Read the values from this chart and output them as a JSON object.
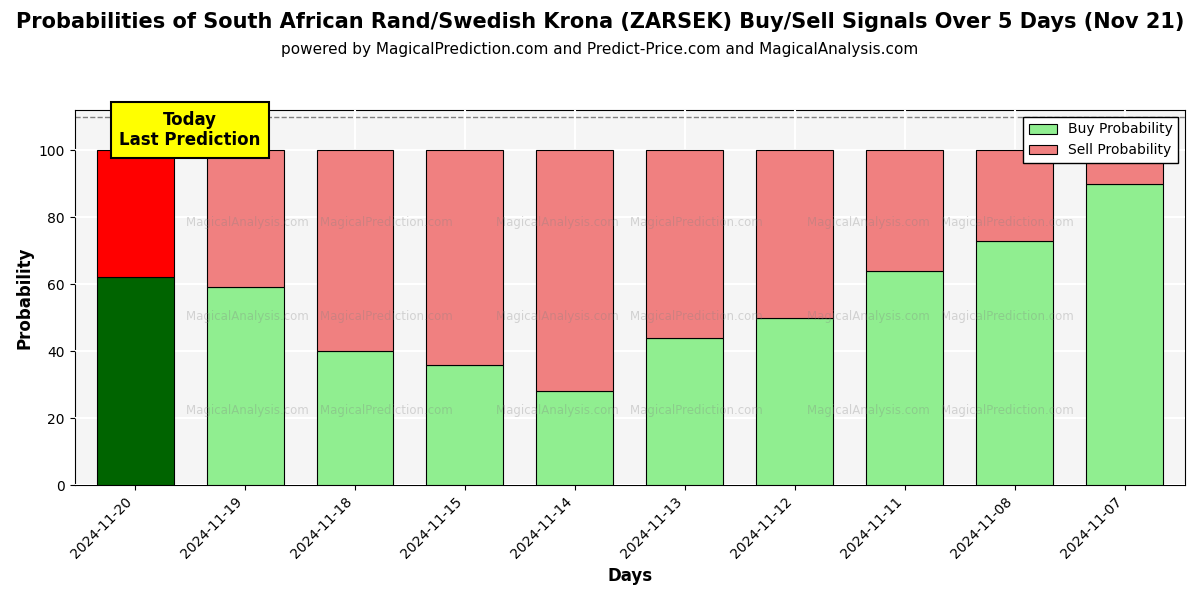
{
  "title": "Probabilities of South African Rand/Swedish Krona (ZARSEK) Buy/Sell Signals Over 5 Days (Nov 21)",
  "subtitle": "powered by MagicalPrediction.com and Predict-Price.com and MagicalAnalysis.com",
  "xlabel": "Days",
  "ylabel": "Probability",
  "watermark_lines": [
    "MagicalAnalysis.com",
    "MagicalPrediction.com"
  ],
  "dates": [
    "2024-11-20",
    "2024-11-19",
    "2024-11-18",
    "2024-11-15",
    "2024-11-14",
    "2024-11-13",
    "2024-11-12",
    "2024-11-11",
    "2024-11-08",
    "2024-11-07"
  ],
  "buy_values": [
    62,
    59,
    40,
    36,
    28,
    44,
    50,
    64,
    73,
    90
  ],
  "sell_values": [
    38,
    41,
    60,
    64,
    72,
    56,
    50,
    36,
    27,
    10
  ],
  "today_buy_color": "#006400",
  "today_sell_color": "#FF0000",
  "buy_color": "#90EE90",
  "sell_color": "#F08080",
  "bar_edge_color": "#000000",
  "ylim": [
    0,
    112
  ],
  "yticks": [
    0,
    20,
    40,
    60,
    80,
    100
  ],
  "dashed_line_y": 110,
  "annotation_text": "Today\nLast Prediction",
  "annotation_bg": "#FFFF00",
  "legend_buy_label": "Buy Probability",
  "legend_sell_label": "Sell Probability",
  "title_fontsize": 15,
  "subtitle_fontsize": 11,
  "axis_label_fontsize": 12,
  "tick_fontsize": 10,
  "plot_bg_color": "#f5f5f5"
}
